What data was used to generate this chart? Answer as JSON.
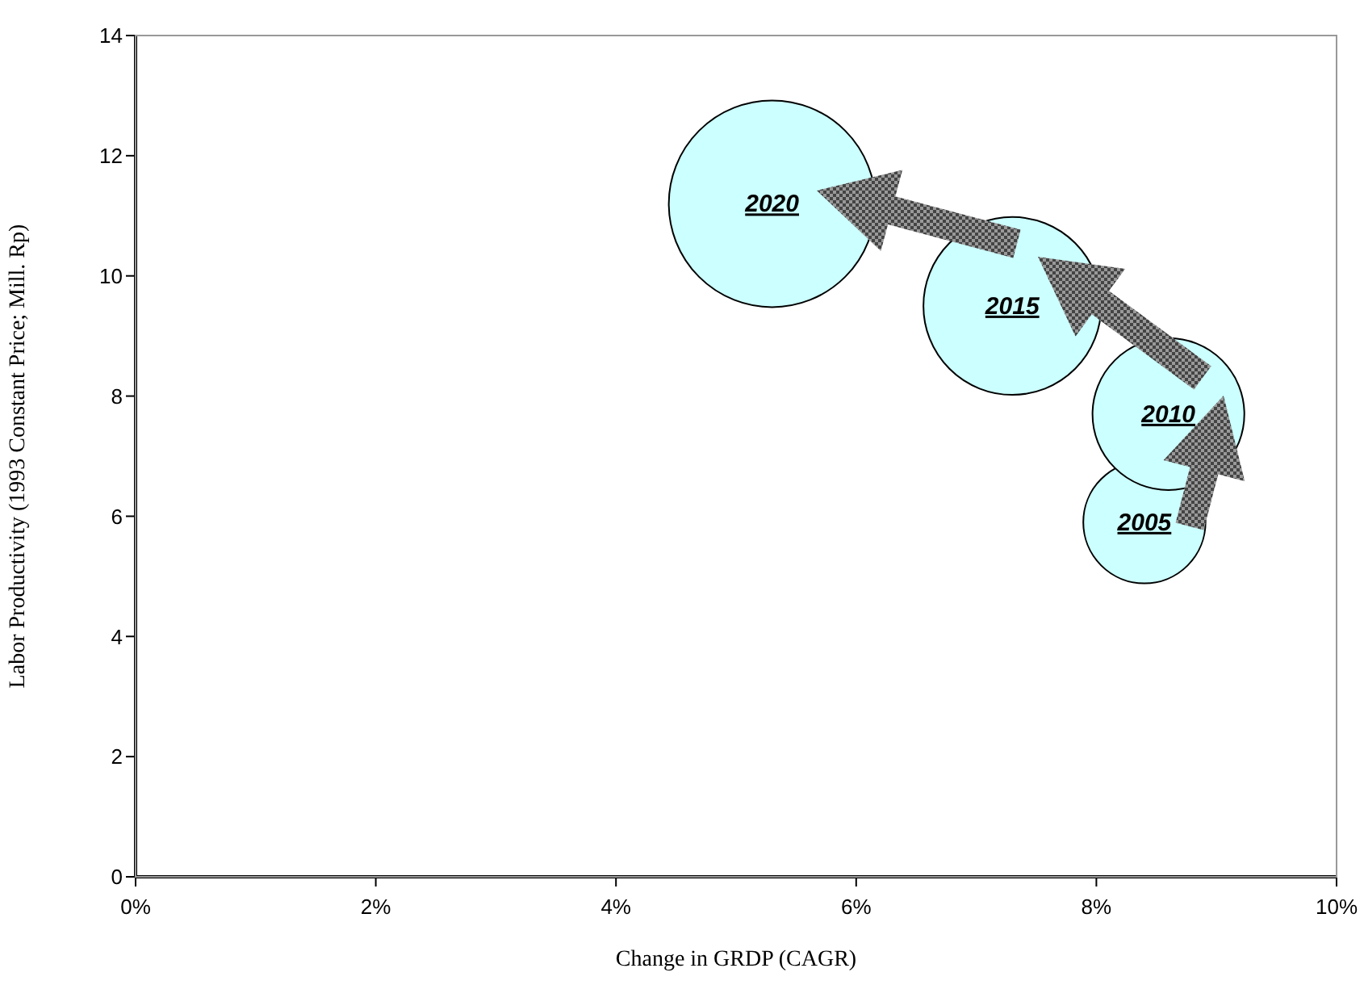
{
  "chart_data": {
    "type": "bubble",
    "xlabel": "Change in GRDP (CAGR)",
    "ylabel": "Labor Productivity (1993 Constant Price; Mill. Rp)",
    "xlim": [
      0,
      10
    ],
    "xticks": [
      {
        "value": 0,
        "label": "0%"
      },
      {
        "value": 2,
        "label": "2%"
      },
      {
        "value": 4,
        "label": "4%"
      },
      {
        "value": 6,
        "label": "6%"
      },
      {
        "value": 8,
        "label": "8%"
      },
      {
        "value": 10,
        "label": "10%"
      }
    ],
    "ylim": [
      0,
      14
    ],
    "yticks": [
      0,
      2,
      4,
      6,
      8,
      10,
      12,
      14
    ],
    "series": [
      {
        "name": "2005",
        "color": "#ccffff",
        "x": [
          8.4
        ],
        "values": [
          5.9
        ],
        "sizes": [
          0.35
        ]
      },
      {
        "name": "2010",
        "color": "#ccffff",
        "x": [
          8.6
        ],
        "values": [
          7.7
        ],
        "sizes": [
          0.54
        ]
      },
      {
        "name": "2015",
        "color": "#ccffff",
        "x": [
          7.3
        ],
        "values": [
          9.5
        ],
        "sizes": [
          0.74
        ]
      },
      {
        "name": "2020",
        "color": "#ccffff",
        "x": [
          5.3
        ],
        "values": [
          11.2
        ],
        "sizes": [
          1
        ]
      }
    ],
    "legend": false,
    "grid": false
  }
}
